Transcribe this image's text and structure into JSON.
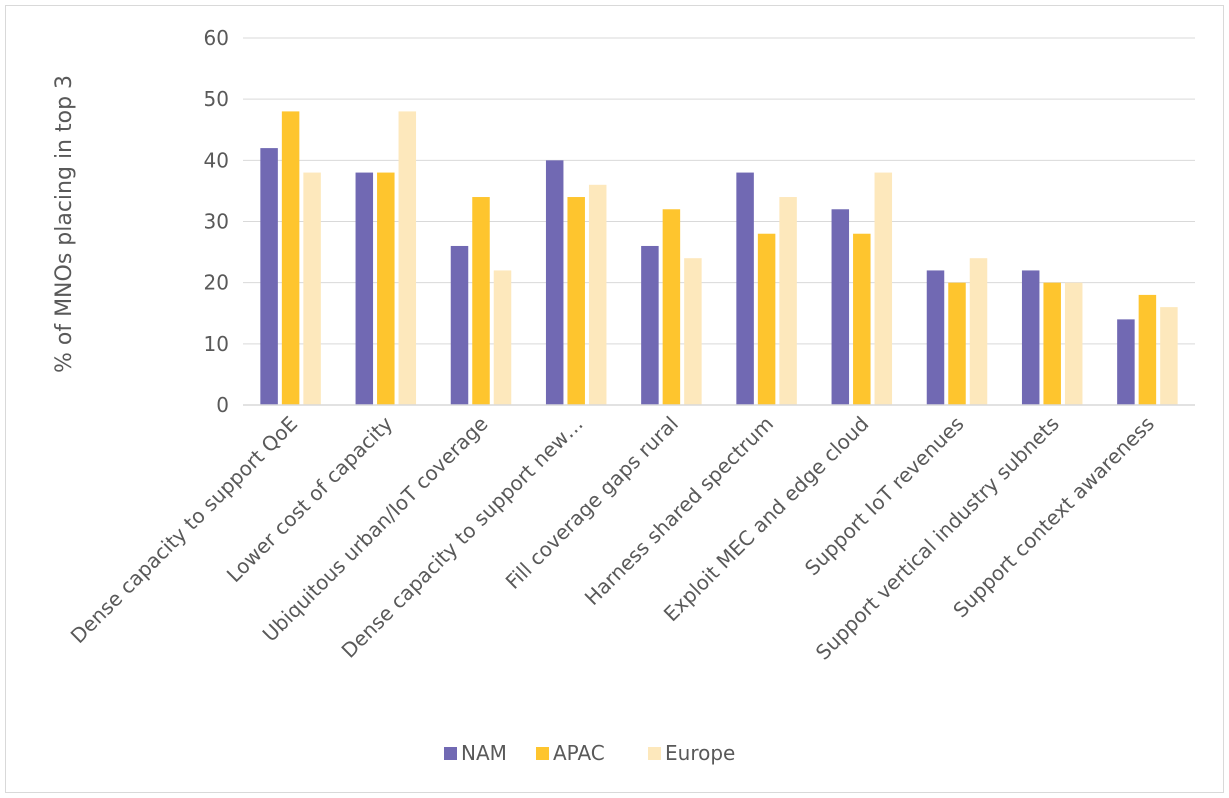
{
  "chart_data": {
    "type": "bar",
    "ylabel": "% of MNOs placing in top 3",
    "ylim": [
      0,
      60
    ],
    "ytick_step": 10,
    "yticks": [
      "0",
      "10",
      "20",
      "30",
      "40",
      "50",
      "60"
    ],
    "grid": true,
    "legend_position": "bottom",
    "categories": [
      "Dense capacity to support QoE",
      "Lower cost of capacity",
      "Ubiquitous urban/IoT coverage",
      "Dense capacity to support new…",
      "Fill coverage gaps rural",
      "Harness shared spectrum",
      "Exploit MEC and edge cloud",
      "Support IoT revenues",
      "Support vertical industry subnets",
      "Support context awareness"
    ],
    "series": [
      {
        "name": "NAM",
        "color": "#7169b3",
        "values": [
          42,
          38,
          26,
          40,
          26,
          38,
          32,
          22,
          22,
          14
        ]
      },
      {
        "name": "APAC",
        "color": "#fec52e",
        "values": [
          48,
          38,
          34,
          34,
          32,
          28,
          28,
          20,
          20,
          18
        ]
      },
      {
        "name": "Europe",
        "color": "#fde8bc",
        "values": [
          38,
          48,
          22,
          36,
          24,
          34,
          38,
          24,
          20,
          16
        ]
      }
    ]
  }
}
